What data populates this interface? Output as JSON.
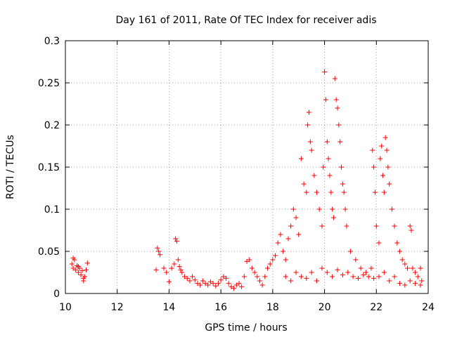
{
  "chart_data": {
    "type": "scatter",
    "title": "Day 161 of 2011, Rate Of TEC Index for receiver adis",
    "xlabel": "GPS time / hours",
    "ylabel": "ROTI / TECUs",
    "xlim": [
      10,
      24
    ],
    "ylim": [
      0,
      0.3
    ],
    "xticks": [
      "10",
      "12",
      "14",
      "16",
      "18",
      "20",
      "22",
      "24"
    ],
    "xtick_values": [
      10,
      12,
      14,
      16,
      18,
      20,
      22,
      24
    ],
    "yticks": [
      "0",
      "0.05",
      "0.1",
      "0.15",
      "0.2",
      "0.25",
      "0.3"
    ],
    "ytick_values": [
      0,
      0.05,
      0.1,
      0.15,
      0.2,
      0.25,
      0.3
    ],
    "grid": true,
    "marker": "+",
    "marker_color": "#ff0000",
    "series": [
      {
        "name": "ROTI",
        "points": [
          [
            10.25,
            0.035
          ],
          [
            10.3,
            0.03
          ],
          [
            10.35,
            0.04
          ],
          [
            10.4,
            0.028
          ],
          [
            10.45,
            0.033
          ],
          [
            10.5,
            0.025
          ],
          [
            10.55,
            0.03
          ],
          [
            10.6,
            0.022
          ],
          [
            10.65,
            0.027
          ],
          [
            10.7,
            0.018
          ],
          [
            10.75,
            0.02
          ],
          [
            10.8,
            0.028
          ],
          [
            10.85,
            0.036
          ],
          [
            10.3,
            0.042
          ],
          [
            10.5,
            0.032
          ],
          [
            10.7,
            0.015
          ],
          [
            13.55,
            0.054
          ],
          [
            13.6,
            0.05
          ],
          [
            13.65,
            0.046
          ],
          [
            13.5,
            0.028
          ],
          [
            13.8,
            0.03
          ],
          [
            13.9,
            0.025
          ],
          [
            14.0,
            0.014
          ],
          [
            14.1,
            0.03
          ],
          [
            14.2,
            0.035
          ],
          [
            14.25,
            0.065
          ],
          [
            14.3,
            0.062
          ],
          [
            14.35,
            0.04
          ],
          [
            14.4,
            0.032
          ],
          [
            14.45,
            0.028
          ],
          [
            14.5,
            0.025
          ],
          [
            14.6,
            0.02
          ],
          [
            14.7,
            0.018
          ],
          [
            14.8,
            0.015
          ],
          [
            14.9,
            0.02
          ],
          [
            15.0,
            0.016
          ],
          [
            15.1,
            0.012
          ],
          [
            15.2,
            0.01
          ],
          [
            15.3,
            0.015
          ],
          [
            15.4,
            0.012
          ],
          [
            15.5,
            0.01
          ],
          [
            15.6,
            0.014
          ],
          [
            15.7,
            0.012
          ],
          [
            15.8,
            0.009
          ],
          [
            15.9,
            0.012
          ],
          [
            16.0,
            0.016
          ],
          [
            16.1,
            0.02
          ],
          [
            16.2,
            0.018
          ],
          [
            16.3,
            0.012
          ],
          [
            16.4,
            0.008
          ],
          [
            16.5,
            0.006
          ],
          [
            16.6,
            0.01
          ],
          [
            16.7,
            0.012
          ],
          [
            16.8,
            0.008
          ],
          [
            16.9,
            0.02
          ],
          [
            17.0,
            0.038
          ],
          [
            17.1,
            0.04
          ],
          [
            17.2,
            0.03
          ],
          [
            17.3,
            0.025
          ],
          [
            17.4,
            0.02
          ],
          [
            17.5,
            0.015
          ],
          [
            17.6,
            0.01
          ],
          [
            17.7,
            0.02
          ],
          [
            17.8,
            0.03
          ],
          [
            17.9,
            0.035
          ],
          [
            18.0,
            0.04
          ],
          [
            18.1,
            0.045
          ],
          [
            18.2,
            0.06
          ],
          [
            18.3,
            0.07
          ],
          [
            18.4,
            0.05
          ],
          [
            18.5,
            0.04
          ],
          [
            18.6,
            0.065
          ],
          [
            18.7,
            0.08
          ],
          [
            18.8,
            0.1
          ],
          [
            18.9,
            0.09
          ],
          [
            19.0,
            0.07
          ],
          [
            19.1,
            0.16
          ],
          [
            19.2,
            0.13
          ],
          [
            19.3,
            0.12
          ],
          [
            19.35,
            0.2
          ],
          [
            19.4,
            0.215
          ],
          [
            19.45,
            0.18
          ],
          [
            19.5,
            0.17
          ],
          [
            19.6,
            0.14
          ],
          [
            19.7,
            0.12
          ],
          [
            19.8,
            0.1
          ],
          [
            19.9,
            0.08
          ],
          [
            19.95,
            0.15
          ],
          [
            20.0,
            0.263
          ],
          [
            20.05,
            0.23
          ],
          [
            20.1,
            0.18
          ],
          [
            20.15,
            0.16
          ],
          [
            20.2,
            0.14
          ],
          [
            20.25,
            0.12
          ],
          [
            20.3,
            0.1
          ],
          [
            20.35,
            0.09
          ],
          [
            20.4,
            0.255
          ],
          [
            20.45,
            0.23
          ],
          [
            20.5,
            0.22
          ],
          [
            20.55,
            0.2
          ],
          [
            20.6,
            0.18
          ],
          [
            20.65,
            0.15
          ],
          [
            20.7,
            0.13
          ],
          [
            20.75,
            0.12
          ],
          [
            20.8,
            0.1
          ],
          [
            20.85,
            0.08
          ],
          [
            21.0,
            0.05
          ],
          [
            21.2,
            0.04
          ],
          [
            21.4,
            0.03
          ],
          [
            21.6,
            0.025
          ],
          [
            21.8,
            0.03
          ],
          [
            21.85,
            0.17
          ],
          [
            21.9,
            0.15
          ],
          [
            21.95,
            0.12
          ],
          [
            22.0,
            0.08
          ],
          [
            22.1,
            0.06
          ],
          [
            22.15,
            0.16
          ],
          [
            22.2,
            0.175
          ],
          [
            22.25,
            0.14
          ],
          [
            22.3,
            0.12
          ],
          [
            22.35,
            0.185
          ],
          [
            22.4,
            0.17
          ],
          [
            22.45,
            0.15
          ],
          [
            22.5,
            0.13
          ],
          [
            22.6,
            0.1
          ],
          [
            22.7,
            0.08
          ],
          [
            22.8,
            0.06
          ],
          [
            22.9,
            0.05
          ],
          [
            23.0,
            0.04
          ],
          [
            23.1,
            0.035
          ],
          [
            23.2,
            0.03
          ],
          [
            23.3,
            0.08
          ],
          [
            23.35,
            0.075
          ],
          [
            23.4,
            0.03
          ],
          [
            23.5,
            0.025
          ],
          [
            23.6,
            0.02
          ],
          [
            23.7,
            0.03
          ],
          [
            23.75,
            0.015
          ],
          [
            18.5,
            0.02
          ],
          [
            18.7,
            0.015
          ],
          [
            18.9,
            0.025
          ],
          [
            19.1,
            0.02
          ],
          [
            19.3,
            0.018
          ],
          [
            19.5,
            0.025
          ],
          [
            19.7,
            0.015
          ],
          [
            19.9,
            0.03
          ],
          [
            20.1,
            0.025
          ],
          [
            20.3,
            0.02
          ],
          [
            20.5,
            0.028
          ],
          [
            20.7,
            0.022
          ],
          [
            20.9,
            0.025
          ],
          [
            21.1,
            0.02
          ],
          [
            21.3,
            0.018
          ],
          [
            21.5,
            0.022
          ],
          [
            21.7,
            0.02
          ],
          [
            21.9,
            0.018
          ],
          [
            22.1,
            0.02
          ],
          [
            22.3,
            0.025
          ],
          [
            22.5,
            0.015
          ],
          [
            22.7,
            0.02
          ],
          [
            22.9,
            0.012
          ],
          [
            23.1,
            0.01
          ],
          [
            23.3,
            0.015
          ],
          [
            23.5,
            0.012
          ],
          [
            23.7,
            0.01
          ]
        ]
      }
    ]
  }
}
